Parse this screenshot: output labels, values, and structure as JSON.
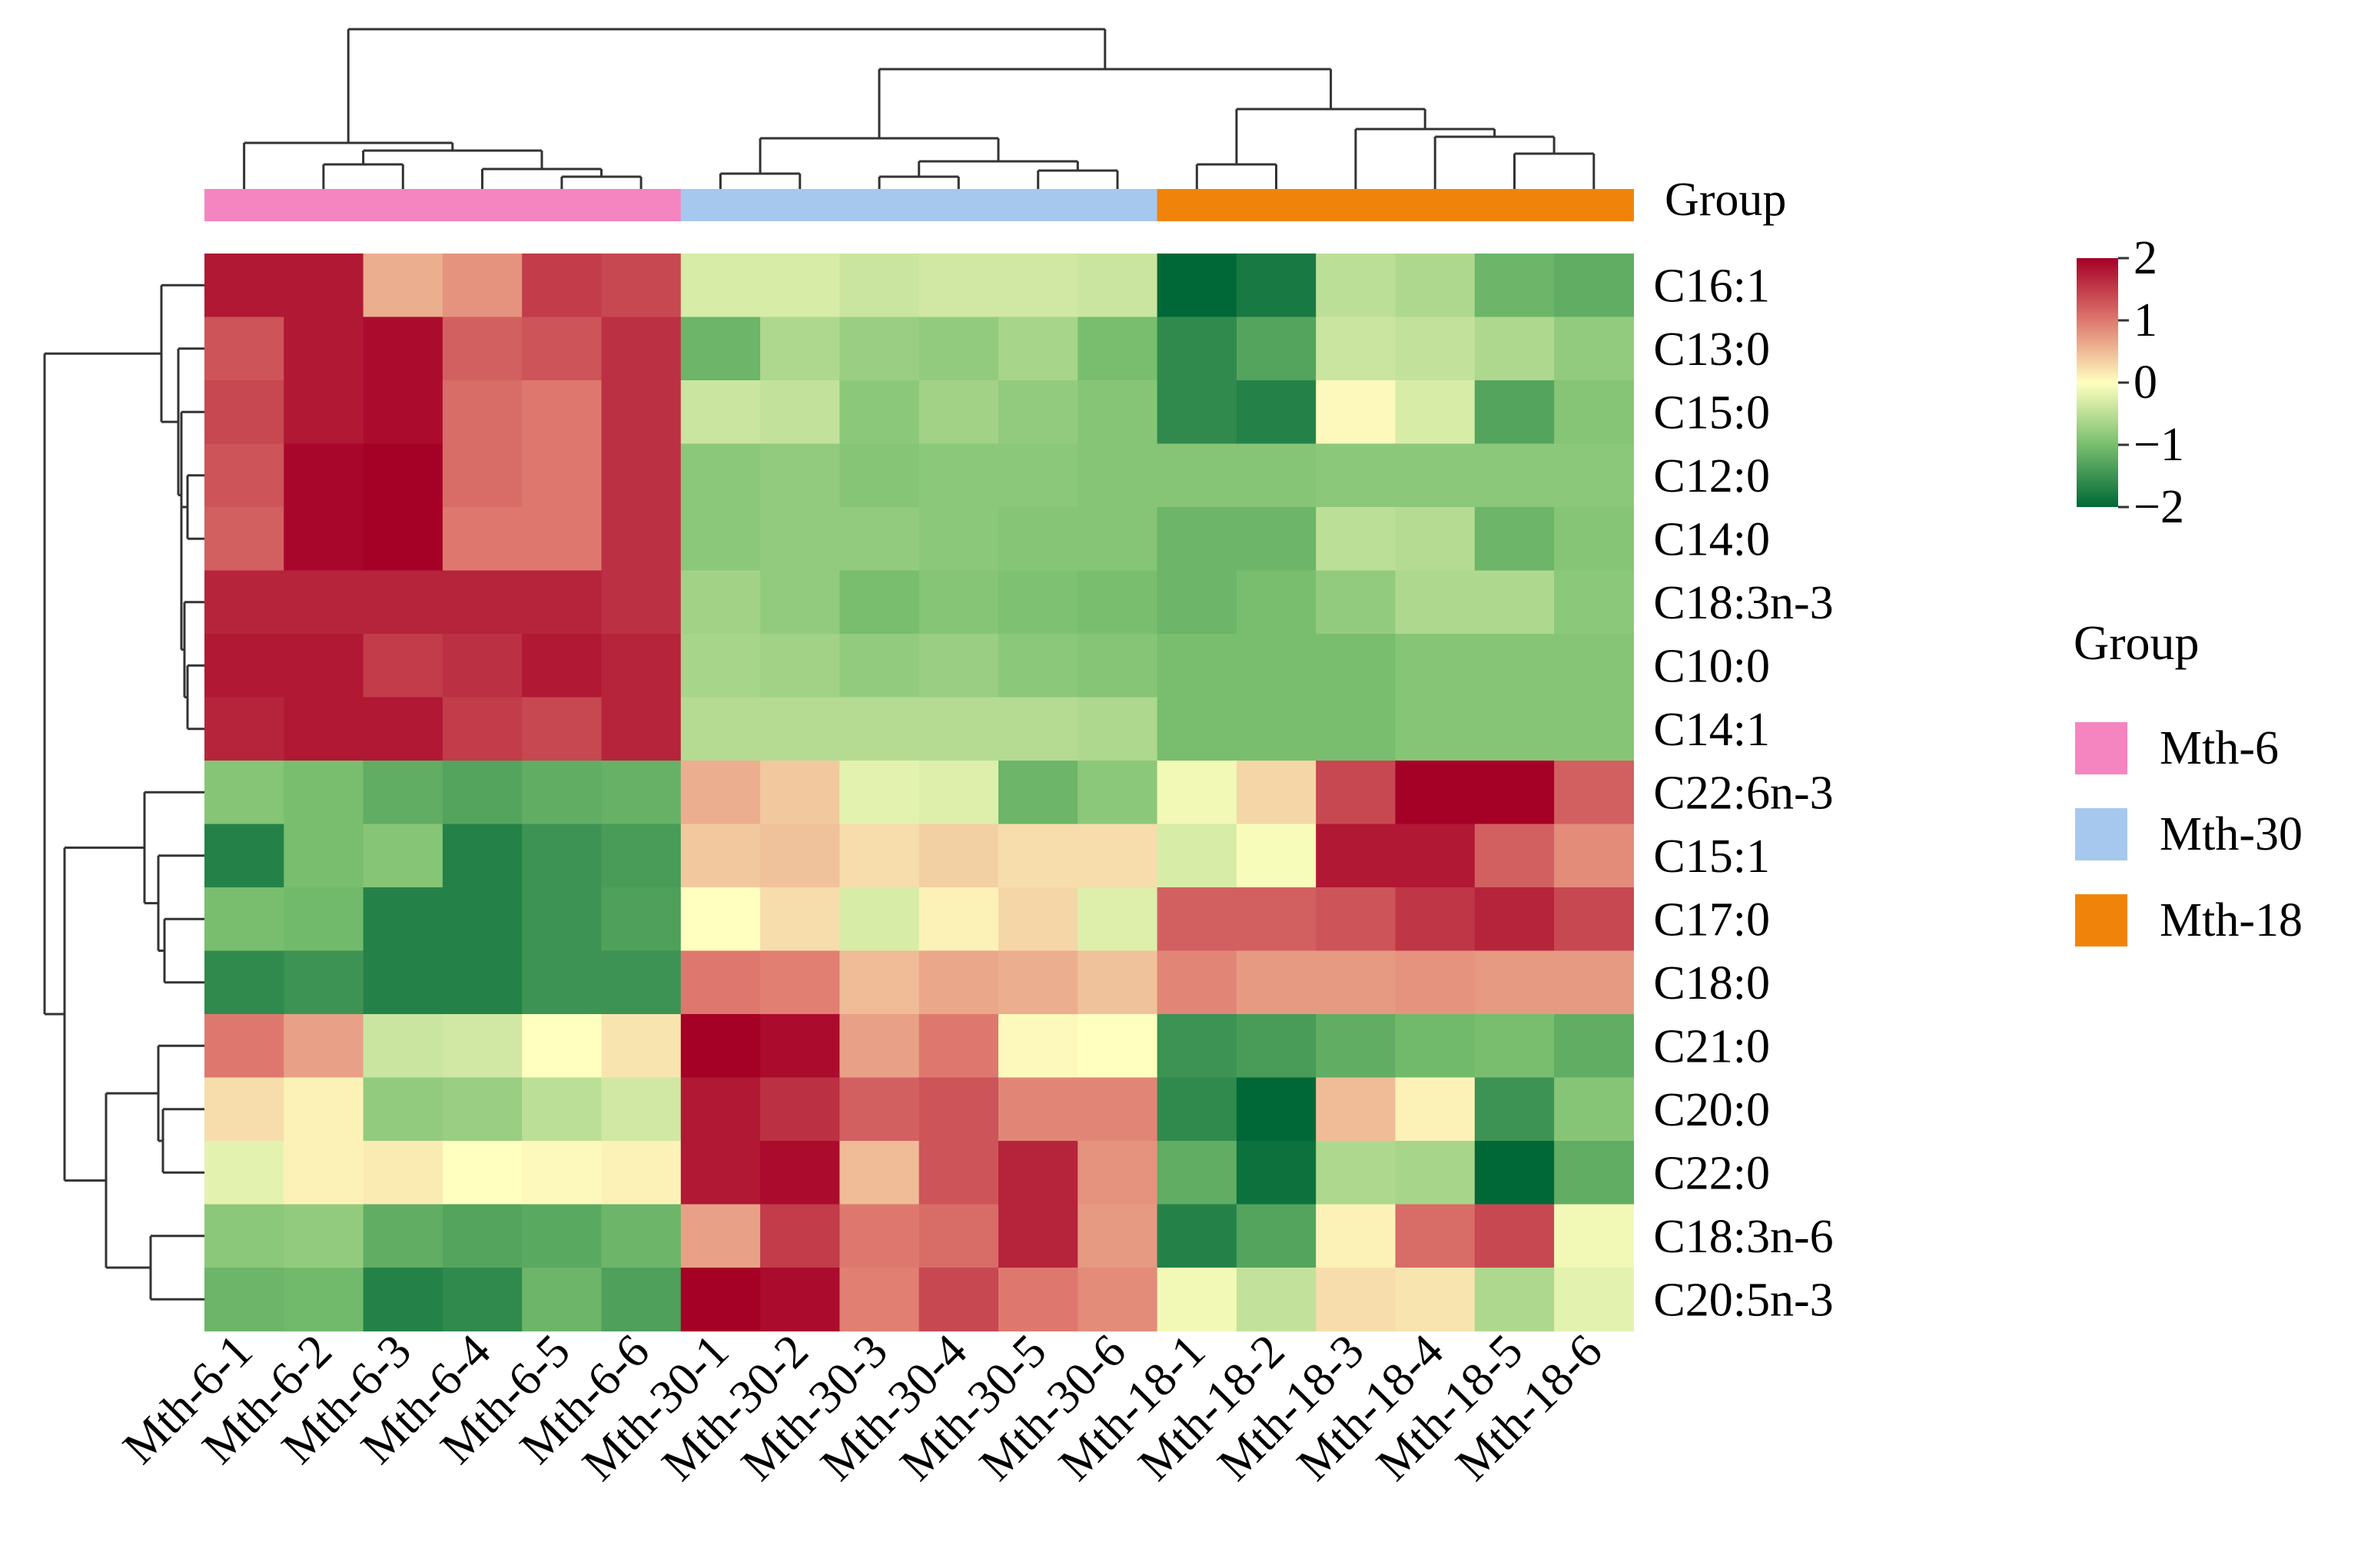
{
  "chart_data": {
    "type": "heatmap",
    "rows": [
      "C16:1",
      "C13:0",
      "C15:0",
      "C12:0",
      "C14:0",
      "C18:3n-3",
      "C10:0",
      "C14:1",
      "C22:6n-3",
      "C15:1",
      "C17:0",
      "C18:0",
      "C21:0",
      "C20:0",
      "C22:0",
      "C18:3n-6",
      "C20:5n-3"
    ],
    "columns": [
      "Mth-6-1",
      "Mth-6-2",
      "Mth-6-3",
      "Mth-6-4",
      "Mth-6-5",
      "Mth-6-6",
      "Mth-30-1",
      "Mth-30-2",
      "Mth-30-3",
      "Mth-30-4",
      "Mth-30-5",
      "Mth-30-6",
      "Mth-18-1",
      "Mth-18-2",
      "Mth-18-3",
      "Mth-18-4",
      "Mth-18-5",
      "Mth-18-6"
    ],
    "column_groups": [
      "Mth-6",
      "Mth-6",
      "Mth-6",
      "Mth-6",
      "Mth-6",
      "Mth-6",
      "Mth-30",
      "Mth-30",
      "Mth-30",
      "Mth-30",
      "Mth-30",
      "Mth-30",
      "Mth-18",
      "Mth-18",
      "Mth-18",
      "Mth-18",
      "Mth-18",
      "Mth-18"
    ],
    "values": [
      [
        1.8,
        1.8,
        0.6,
        0.8,
        1.5,
        1.4,
        -0.3,
        -0.3,
        -0.4,
        -0.35,
        -0.35,
        -0.4,
        -2.0,
        -1.8,
        -0.5,
        -0.6,
        -1.1,
        -1.2
      ],
      [
        1.3,
        1.8,
        1.9,
        1.2,
        1.3,
        1.6,
        -1.1,
        -0.6,
        -0.75,
        -0.8,
        -0.65,
        -1.0,
        -1.6,
        -1.3,
        -0.4,
        -0.45,
        -0.6,
        -0.8
      ],
      [
        1.4,
        1.8,
        1.9,
        1.1,
        1.0,
        1.6,
        -0.4,
        -0.45,
        -0.85,
        -0.7,
        -0.8,
        -0.9,
        -1.6,
        -1.7,
        0.05,
        -0.3,
        -1.3,
        -0.9
      ],
      [
        1.3,
        1.95,
        2.0,
        1.1,
        1.0,
        1.6,
        -0.85,
        -0.8,
        -0.9,
        -0.85,
        -0.85,
        -0.9,
        -0.9,
        -0.9,
        -0.85,
        -0.85,
        -0.85,
        -0.85
      ],
      [
        1.2,
        1.95,
        2.1,
        1.0,
        1.0,
        1.6,
        -0.85,
        -0.8,
        -0.8,
        -0.85,
        -0.9,
        -0.9,
        -1.1,
        -1.1,
        -0.5,
        -0.55,
        -1.1,
        -0.9
      ],
      [
        1.7,
        1.7,
        1.7,
        1.7,
        1.7,
        1.6,
        -0.7,
        -0.8,
        -1.0,
        -0.9,
        -0.95,
        -1.0,
        -1.1,
        -1.0,
        -0.8,
        -0.6,
        -0.6,
        -0.85
      ],
      [
        1.8,
        1.8,
        1.5,
        1.6,
        1.8,
        1.7,
        -0.65,
        -0.7,
        -0.8,
        -0.75,
        -0.85,
        -0.9,
        -1.0,
        -1.0,
        -1.0,
        -0.9,
        -0.9,
        -0.9
      ],
      [
        1.7,
        1.8,
        1.8,
        1.5,
        1.4,
        1.7,
        -0.55,
        -0.55,
        -0.55,
        -0.55,
        -0.55,
        -0.6,
        -1.0,
        -1.0,
        -1.0,
        -0.9,
        -0.9,
        -0.9
      ],
      [
        -0.9,
        -1.0,
        -1.2,
        -1.3,
        -1.2,
        -1.15,
        0.6,
        0.4,
        -0.2,
        -0.25,
        -1.1,
        -0.85,
        -0.1,
        0.3,
        1.4,
        2.0,
        2.2,
        1.2
      ],
      [
        -1.7,
        -1.0,
        -0.9,
        -1.7,
        -1.5,
        -1.4,
        0.4,
        0.45,
        0.25,
        0.35,
        0.25,
        0.25,
        -0.3,
        -0.05,
        1.8,
        1.8,
        1.2,
        0.85
      ],
      [
        -1.0,
        -1.05,
        -1.7,
        -1.7,
        -1.5,
        -1.35,
        0.0,
        0.25,
        -0.3,
        0.1,
        0.3,
        -0.25,
        1.2,
        1.2,
        1.3,
        1.55,
        1.7,
        1.4
      ],
      [
        -1.6,
        -1.5,
        -1.7,
        -1.7,
        -1.5,
        -1.5,
        1.0,
        0.95,
        0.5,
        0.65,
        0.6,
        0.45,
        0.9,
        0.75,
        0.75,
        0.8,
        0.75,
        0.75
      ],
      [
        1.0,
        0.7,
        -0.4,
        -0.35,
        0.0,
        0.2,
        2.2,
        1.9,
        0.7,
        1.0,
        0.05,
        0.0,
        -1.5,
        -1.4,
        -1.2,
        -1.05,
        -1.0,
        -1.2
      ],
      [
        0.25,
        0.1,
        -0.8,
        -0.75,
        -0.5,
        -0.35,
        1.8,
        1.6,
        1.2,
        1.3,
        0.9,
        0.9,
        -1.6,
        -2.0,
        0.5,
        0.1,
        -1.5,
        -0.9
      ],
      [
        -0.2,
        0.1,
        0.15,
        0.0,
        0.05,
        0.1,
        1.8,
        1.9,
        0.5,
        1.3,
        1.7,
        0.8,
        -1.2,
        -1.9,
        -0.6,
        -0.65,
        -2.0,
        -1.2
      ],
      [
        -0.85,
        -0.8,
        -1.2,
        -1.3,
        -1.25,
        -1.1,
        0.7,
        1.5,
        1.0,
        1.1,
        1.7,
        0.75,
        -1.7,
        -1.3,
        0.1,
        1.1,
        1.4,
        -0.1
      ],
      [
        -1.1,
        -1.05,
        -1.7,
        -1.6,
        -1.1,
        -1.35,
        2.1,
        1.9,
        0.95,
        1.4,
        1.0,
        0.85,
        -0.1,
        -0.45,
        0.25,
        0.2,
        -0.6,
        -0.2
      ]
    ],
    "color_scale": {
      "min": -2,
      "max": 2,
      "ticks": [
        2,
        1,
        0,
        -1,
        -2
      ],
      "tick_labels": [
        "2",
        "1",
        "0",
        "−1",
        "−2"
      ],
      "colors": [
        "#006837",
        "#a6d96a",
        "#ffffbf",
        "#fdae61",
        "#a50026"
      ],
      "midpoint_color": "#ffffbf",
      "low_color": "#1a9850",
      "high_color": "#a50026"
    },
    "group_bar_label": "Group",
    "legend": {
      "title": "Group",
      "items": [
        {
          "label": "Mth-6",
          "color": "#f485c1"
        },
        {
          "label": "Mth-30",
          "color": "#a6c8ef"
        },
        {
          "label": "Mth-18",
          "color": "#f0840a"
        }
      ]
    },
    "row_dendrogram": true,
    "column_dendrogram": true
  }
}
